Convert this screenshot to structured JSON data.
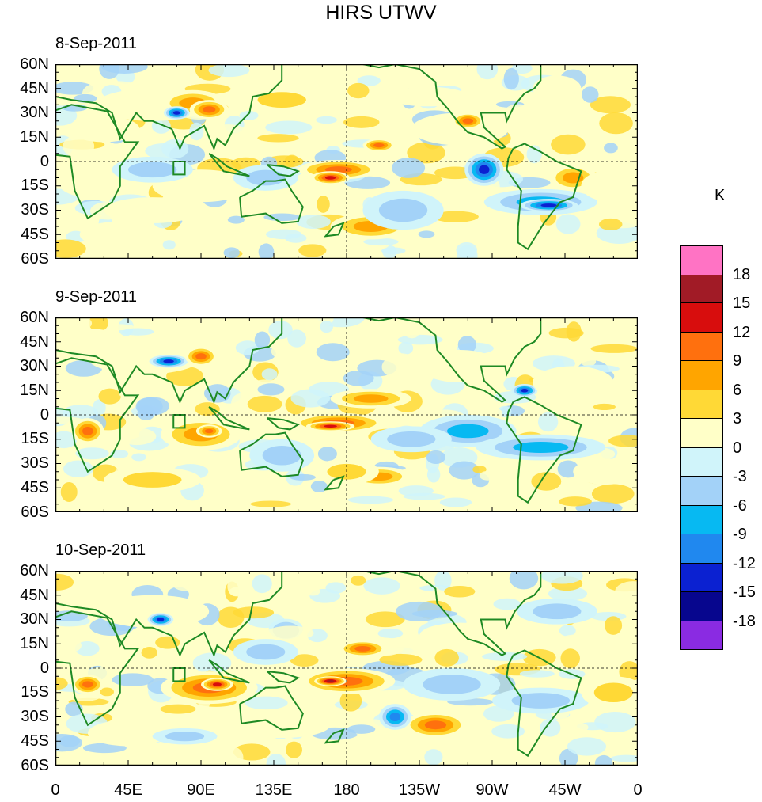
{
  "title": "HIRS UTWV",
  "panels": [
    {
      "date": "8-Sep-2011"
    },
    {
      "date": "9-Sep-2011"
    },
    {
      "date": "10-Sep-2011"
    }
  ],
  "y_ticks": [
    "60N",
    "45N",
    "30N",
    "15N",
    "0",
    "15S",
    "30S",
    "45S",
    "60S"
  ],
  "x_ticks": [
    "0",
    "45E",
    "90E",
    "135E",
    "180",
    "135W",
    "90W",
    "45W",
    "0"
  ],
  "colorbar": {
    "units": "K",
    "labels": [
      "18",
      "15",
      "12",
      "9",
      "6",
      "3",
      "0",
      "-3",
      "-6",
      "-9",
      "-12",
      "-15",
      "-18"
    ],
    "colors": [
      "#ff73c4",
      "#a11b26",
      "#d80d0d",
      "#ff700e",
      "#ffa500",
      "#ffd936",
      "#ffffc8",
      "#d0f4fa",
      "#a3d2f8",
      "#07b9f2",
      "#2088ef",
      "#0b21d1",
      "#07068e",
      "#8a2be2"
    ]
  },
  "colors": {
    "land_outline": "#1e8a24",
    "frame": "#000000"
  }
}
